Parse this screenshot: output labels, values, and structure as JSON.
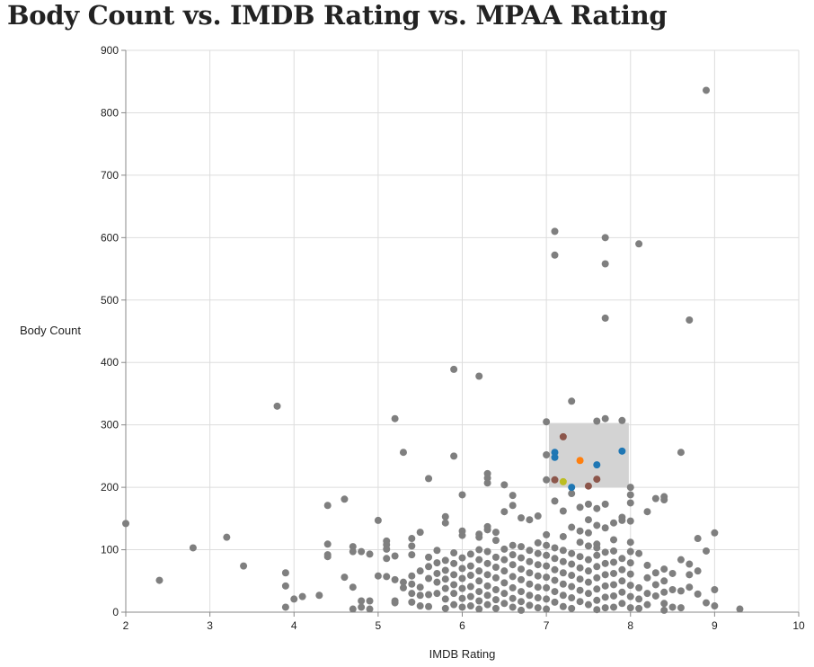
{
  "chart_data": {
    "type": "scatter",
    "title": "Body Count vs. IMDB Rating vs. MPAA Rating",
    "xlabel": "IMDB Rating",
    "ylabel": "Body Count",
    "xlim": [
      2,
      10
    ],
    "ylim": [
      0,
      900
    ],
    "x_ticks": [
      "2",
      "3",
      "4",
      "5",
      "6",
      "7",
      "8",
      "9",
      "10"
    ],
    "y_ticks": [
      "0",
      "100",
      "200",
      "300",
      "400",
      "500",
      "600",
      "700",
      "800",
      "900"
    ],
    "grid": true,
    "legend": "none",
    "colors": {
      "default": "#7f7f7f",
      "brush": "#d3d3d3",
      "grid": "#dddddd",
      "axis": "#888888"
    },
    "brush": {
      "x": [
        7.03,
        7.98
      ],
      "y": [
        200,
        303
      ]
    },
    "highlighted_points": [
      {
        "x": 7.2,
        "y": 281,
        "color": "#8c564b"
      },
      {
        "x": 7.1,
        "y": 256,
        "color": "#1f77b4"
      },
      {
        "x": 7.1,
        "y": 248,
        "color": "#1f77b4"
      },
      {
        "x": 7.9,
        "y": 258,
        "color": "#1f77b4"
      },
      {
        "x": 7.4,
        "y": 243,
        "color": "#ff7f0e"
      },
      {
        "x": 7.6,
        "y": 236,
        "color": "#1f77b4"
      },
      {
        "x": 7.1,
        "y": 212,
        "color": "#8c564b"
      },
      {
        "x": 7.2,
        "y": 209,
        "color": "#bcbd22"
      },
      {
        "x": 7.3,
        "y": 200,
        "color": "#1f77b4"
      },
      {
        "x": 7.5,
        "y": 202,
        "color": "#8c564b"
      },
      {
        "x": 7.6,
        "y": 213,
        "color": "#8c564b"
      }
    ],
    "points": [
      [
        2.0,
        142
      ],
      [
        2.4,
        51
      ],
      [
        2.8,
        103
      ],
      [
        3.2,
        120
      ],
      [
        3.4,
        74
      ],
      [
        3.8,
        330
      ],
      [
        3.9,
        63
      ],
      [
        3.9,
        42
      ],
      [
        3.9,
        8
      ],
      [
        4.0,
        21
      ],
      [
        4.1,
        25
      ],
      [
        4.3,
        27
      ],
      [
        4.4,
        171
      ],
      [
        4.4,
        109
      ],
      [
        4.4,
        92
      ],
      [
        4.4,
        89
      ],
      [
        4.6,
        181
      ],
      [
        4.6,
        56
      ],
      [
        4.7,
        105
      ],
      [
        4.7,
        97
      ],
      [
        4.7,
        40
      ],
      [
        4.7,
        5
      ],
      [
        4.8,
        97
      ],
      [
        4.8,
        18
      ],
      [
        4.8,
        8
      ],
      [
        4.9,
        93
      ],
      [
        4.9,
        18
      ],
      [
        4.9,
        5
      ],
      [
        5.0,
        147
      ],
      [
        5.0,
        58
      ],
      [
        5.1,
        114
      ],
      [
        5.1,
        108
      ],
      [
        5.1,
        101
      ],
      [
        5.1,
        86
      ],
      [
        5.1,
        57
      ],
      [
        5.2,
        310
      ],
      [
        5.2,
        90
      ],
      [
        5.2,
        52
      ],
      [
        5.2,
        18
      ],
      [
        5.2,
        15
      ],
      [
        5.3,
        256
      ],
      [
        5.3,
        48
      ],
      [
        5.3,
        39
      ],
      [
        5.4,
        118
      ],
      [
        5.4,
        106
      ],
      [
        5.4,
        92
      ],
      [
        5.4,
        58
      ],
      [
        5.4,
        45
      ],
      [
        5.4,
        30
      ],
      [
        5.4,
        16
      ],
      [
        5.5,
        128
      ],
      [
        5.5,
        66
      ],
      [
        5.5,
        40
      ],
      [
        5.5,
        27
      ],
      [
        5.5,
        10
      ],
      [
        5.6,
        214
      ],
      [
        5.6,
        88
      ],
      [
        5.6,
        73
      ],
      [
        5.6,
        54
      ],
      [
        5.6,
        28
      ],
      [
        5.6,
        9
      ],
      [
        5.7,
        99
      ],
      [
        5.7,
        79
      ],
      [
        5.7,
        62
      ],
      [
        5.7,
        48
      ],
      [
        5.7,
        30
      ],
      [
        5.8,
        153
      ],
      [
        5.8,
        143
      ],
      [
        5.8,
        83
      ],
      [
        5.8,
        67
      ],
      [
        5.8,
        53
      ],
      [
        5.8,
        38
      ],
      [
        5.8,
        21
      ],
      [
        5.8,
        6
      ],
      [
        5.9,
        389
      ],
      [
        5.9,
        250
      ],
      [
        5.9,
        95
      ],
      [
        5.9,
        78
      ],
      [
        5.9,
        60
      ],
      [
        5.9,
        44
      ],
      [
        5.9,
        30
      ],
      [
        5.9,
        12
      ],
      [
        6.0,
        188
      ],
      [
        6.0,
        130
      ],
      [
        6.0,
        123
      ],
      [
        6.0,
        87
      ],
      [
        6.0,
        70
      ],
      [
        6.0,
        54
      ],
      [
        6.0,
        38
      ],
      [
        6.0,
        22
      ],
      [
        6.0,
        8
      ],
      [
        6.1,
        93
      ],
      [
        6.1,
        74
      ],
      [
        6.1,
        59
      ],
      [
        6.1,
        41
      ],
      [
        6.1,
        25
      ],
      [
        6.1,
        10
      ],
      [
        6.2,
        378
      ],
      [
        6.2,
        125
      ],
      [
        6.2,
        120
      ],
      [
        6.2,
        100
      ],
      [
        6.2,
        84
      ],
      [
        6.2,
        66
      ],
      [
        6.2,
        50
      ],
      [
        6.2,
        33
      ],
      [
        6.2,
        18
      ],
      [
        6.2,
        5
      ],
      [
        6.3,
        222
      ],
      [
        6.3,
        215
      ],
      [
        6.3,
        207
      ],
      [
        6.3,
        137
      ],
      [
        6.3,
        132
      ],
      [
        6.3,
        97
      ],
      [
        6.3,
        78
      ],
      [
        6.3,
        60
      ],
      [
        6.3,
        42
      ],
      [
        6.3,
        27
      ],
      [
        6.3,
        12
      ],
      [
        6.4,
        128
      ],
      [
        6.4,
        115
      ],
      [
        6.4,
        88
      ],
      [
        6.4,
        72
      ],
      [
        6.4,
        55
      ],
      [
        6.4,
        36
      ],
      [
        6.4,
        20
      ],
      [
        6.4,
        6
      ],
      [
        6.5,
        204
      ],
      [
        6.5,
        161
      ],
      [
        6.5,
        101
      ],
      [
        6.5,
        84
      ],
      [
        6.5,
        66
      ],
      [
        6.5,
        47
      ],
      [
        6.5,
        30
      ],
      [
        6.5,
        14
      ],
      [
        6.6,
        187
      ],
      [
        6.6,
        171
      ],
      [
        6.6,
        107
      ],
      [
        6.6,
        92
      ],
      [
        6.6,
        76
      ],
      [
        6.6,
        57
      ],
      [
        6.6,
        39
      ],
      [
        6.6,
        22
      ],
      [
        6.6,
        8
      ],
      [
        6.7,
        151
      ],
      [
        6.7,
        105
      ],
      [
        6.7,
        87
      ],
      [
        6.7,
        69
      ],
      [
        6.7,
        52
      ],
      [
        6.7,
        33
      ],
      [
        6.7,
        17
      ],
      [
        6.7,
        3
      ],
      [
        6.8,
        148
      ],
      [
        6.8,
        99
      ],
      [
        6.8,
        81
      ],
      [
        6.8,
        63
      ],
      [
        6.8,
        45
      ],
      [
        6.8,
        27
      ],
      [
        6.8,
        11
      ],
      [
        6.9,
        154
      ],
      [
        6.9,
        111
      ],
      [
        6.9,
        94
      ],
      [
        6.9,
        76
      ],
      [
        6.9,
        58
      ],
      [
        6.9,
        40
      ],
      [
        6.9,
        23
      ],
      [
        6.9,
        7
      ],
      [
        7.0,
        305
      ],
      [
        7.0,
        252
      ],
      [
        7.0,
        212
      ],
      [
        7.0,
        124
      ],
      [
        7.0,
        107
      ],
      [
        7.0,
        91
      ],
      [
        7.0,
        74
      ],
      [
        7.0,
        56
      ],
      [
        7.0,
        39
      ],
      [
        7.0,
        21
      ],
      [
        7.0,
        5
      ],
      [
        7.1,
        610
      ],
      [
        7.1,
        572
      ],
      [
        7.1,
        178
      ],
      [
        7.1,
        103
      ],
      [
        7.1,
        86
      ],
      [
        7.1,
        68
      ],
      [
        7.1,
        51
      ],
      [
        7.1,
        33
      ],
      [
        7.1,
        16
      ],
      [
        7.2,
        162
      ],
      [
        7.2,
        121
      ],
      [
        7.2,
        99
      ],
      [
        7.2,
        81
      ],
      [
        7.2,
        63
      ],
      [
        7.2,
        45
      ],
      [
        7.2,
        27
      ],
      [
        7.2,
        9
      ],
      [
        7.3,
        338
      ],
      [
        7.3,
        190
      ],
      [
        7.3,
        136
      ],
      [
        7.3,
        94
      ],
      [
        7.3,
        77
      ],
      [
        7.3,
        59
      ],
      [
        7.3,
        41
      ],
      [
        7.3,
        23
      ],
      [
        7.3,
        6
      ],
      [
        7.4,
        168
      ],
      [
        7.4,
        130
      ],
      [
        7.4,
        112
      ],
      [
        7.4,
        89
      ],
      [
        7.4,
        71
      ],
      [
        7.4,
        53
      ],
      [
        7.4,
        35
      ],
      [
        7.4,
        17
      ],
      [
        7.5,
        173
      ],
      [
        7.5,
        148
      ],
      [
        7.5,
        127
      ],
      [
        7.5,
        106
      ],
      [
        7.5,
        84
      ],
      [
        7.5,
        66
      ],
      [
        7.5,
        48
      ],
      [
        7.5,
        30
      ],
      [
        7.5,
        12
      ],
      [
        7.6,
        306
      ],
      [
        7.6,
        166
      ],
      [
        7.6,
        139
      ],
      [
        7.6,
        109
      ],
      [
        7.6,
        103
      ],
      [
        7.6,
        91
      ],
      [
        7.6,
        73
      ],
      [
        7.6,
        55
      ],
      [
        7.6,
        37
      ],
      [
        7.6,
        19
      ],
      [
        7.6,
        4
      ],
      [
        7.7,
        600
      ],
      [
        7.7,
        558
      ],
      [
        7.7,
        471
      ],
      [
        7.7,
        310
      ],
      [
        7.7,
        173
      ],
      [
        7.7,
        135
      ],
      [
        7.7,
        96
      ],
      [
        7.7,
        78
      ],
      [
        7.7,
        60
      ],
      [
        7.7,
        42
      ],
      [
        7.7,
        24
      ],
      [
        7.7,
        7
      ],
      [
        7.8,
        143
      ],
      [
        7.8,
        116
      ],
      [
        7.8,
        98
      ],
      [
        7.8,
        80
      ],
      [
        7.8,
        62
      ],
      [
        7.8,
        44
      ],
      [
        7.8,
        26
      ],
      [
        7.8,
        8
      ],
      [
        7.9,
        307
      ],
      [
        7.9,
        152
      ],
      [
        7.9,
        147
      ],
      [
        7.9,
        86
      ],
      [
        7.9,
        68
      ],
      [
        7.9,
        50
      ],
      [
        7.9,
        32
      ],
      [
        7.9,
        14
      ],
      [
        8.0,
        200
      ],
      [
        8.0,
        188
      ],
      [
        8.0,
        175
      ],
      [
        8.0,
        146
      ],
      [
        8.0,
        112
      ],
      [
        8.0,
        97
      ],
      [
        8.0,
        79
      ],
      [
        8.0,
        61
      ],
      [
        8.0,
        43
      ],
      [
        8.0,
        25
      ],
      [
        8.0,
        7
      ],
      [
        8.1,
        590
      ],
      [
        8.1,
        94
      ],
      [
        8.1,
        39
      ],
      [
        8.1,
        21
      ],
      [
        8.1,
        6
      ],
      [
        8.2,
        161
      ],
      [
        8.2,
        75
      ],
      [
        8.2,
        55
      ],
      [
        8.2,
        30
      ],
      [
        8.2,
        12
      ],
      [
        8.3,
        182
      ],
      [
        8.3,
        63
      ],
      [
        8.3,
        44
      ],
      [
        8.3,
        26
      ],
      [
        8.4,
        185
      ],
      [
        8.4,
        180
      ],
      [
        8.4,
        69
      ],
      [
        8.4,
        50
      ],
      [
        8.4,
        32
      ],
      [
        8.4,
        14
      ],
      [
        8.4,
        3
      ],
      [
        8.5,
        62
      ],
      [
        8.5,
        36
      ],
      [
        8.5,
        8
      ],
      [
        8.6,
        256
      ],
      [
        8.6,
        84
      ],
      [
        8.6,
        34
      ],
      [
        8.6,
        7
      ],
      [
        8.7,
        468
      ],
      [
        8.7,
        77
      ],
      [
        8.7,
        60
      ],
      [
        8.7,
        40
      ],
      [
        8.8,
        118
      ],
      [
        8.8,
        66
      ],
      [
        8.8,
        29
      ],
      [
        8.9,
        836
      ],
      [
        8.9,
        98
      ],
      [
        8.9,
        15
      ],
      [
        9.0,
        127
      ],
      [
        9.0,
        36
      ],
      [
        9.0,
        10
      ],
      [
        9.3,
        5
      ]
    ]
  }
}
